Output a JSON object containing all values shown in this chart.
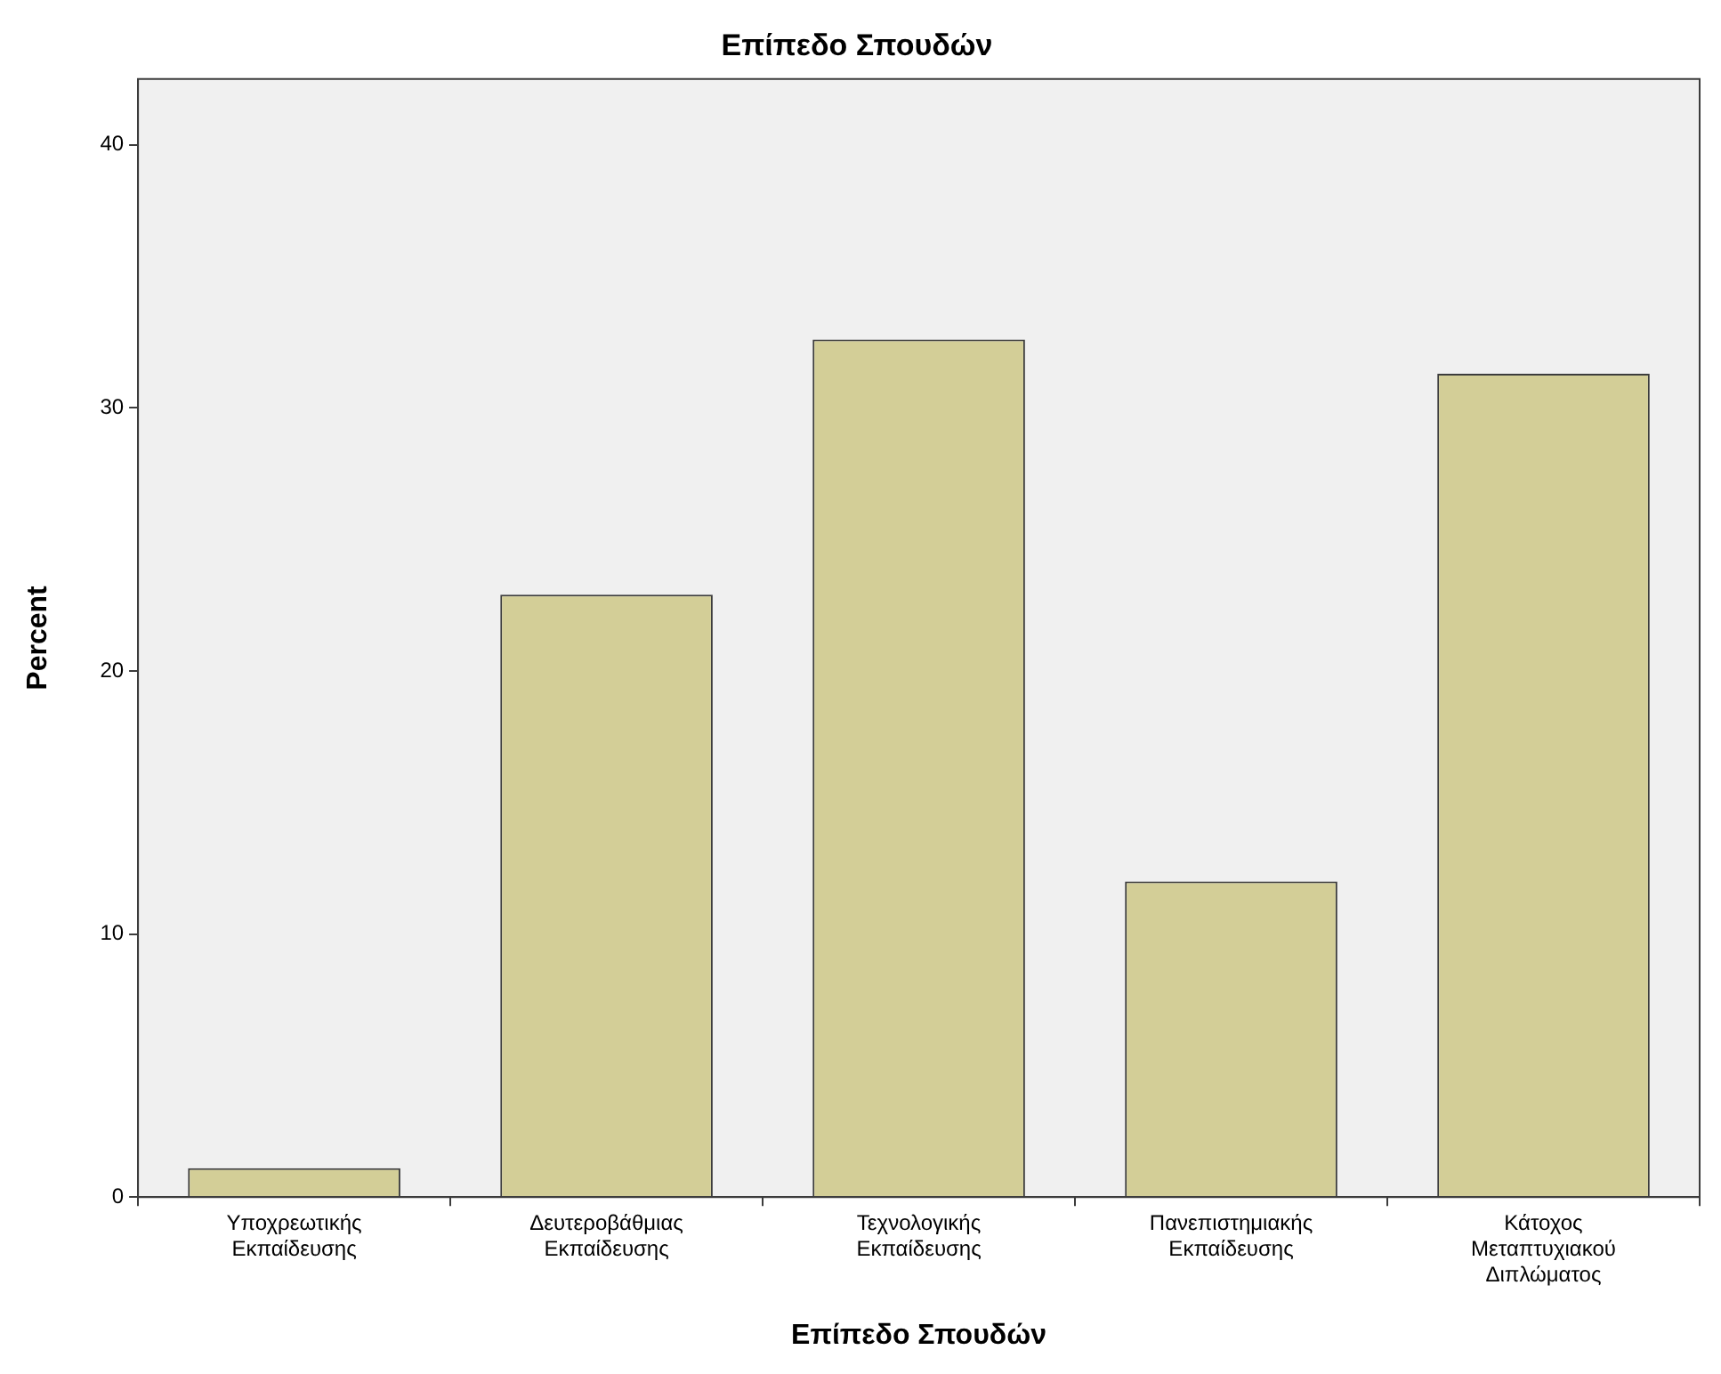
{
  "chart_data": {
    "type": "bar",
    "title": "Επίπεδο Σπουδών",
    "xlabel": "Επίπεδο Σπουδών",
    "ylabel": "Percent",
    "categories": [
      "Υποχρεωτικής Εκπαίδευσης",
      "Δευτεροβάθμιας Εκπαίδευσης",
      "Τεχνολογικής Εκπαίδευσης",
      "Πανεπιστημιακής Εκπαίδευσης",
      "Κάτοχος Μεταπτυχιακού Διπλώματος"
    ],
    "values": [
      1.1,
      22.9,
      32.6,
      12.0,
      31.3
    ],
    "color": "#d3ce97",
    "ylim": [
      0,
      42.5
    ],
    "yticks": [
      0,
      10,
      20,
      30,
      40
    ],
    "grid": false,
    "legend": false
  }
}
